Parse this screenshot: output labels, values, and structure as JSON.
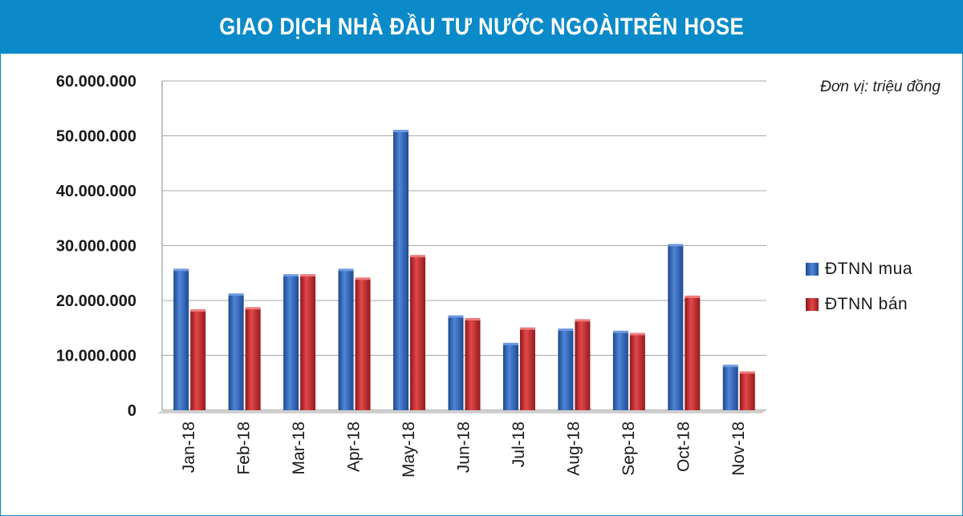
{
  "header": {
    "title": "GIAO DỊCH NHÀ ĐẦU TƯ NƯỚC NGOÀITRÊN HOSE"
  },
  "unit_note": "Đơn vị: triệu đồng",
  "colors": {
    "header_bg": "#0a8ac8",
    "buy": "#2f63b5",
    "sell": "#c8262a"
  },
  "chart_data": {
    "type": "bar",
    "categories": [
      "Jan-18",
      "Feb-18",
      "Mar-18",
      "Apr-18",
      "May-18",
      "Jun-18",
      "Jul-18",
      "Aug-18",
      "Sep-18",
      "Oct-18",
      "Nov-18"
    ],
    "series": [
      {
        "name": "ĐTNN mua",
        "values": [
          25500000,
          21000000,
          24500000,
          25500000,
          50800000,
          17000000,
          12000000,
          14600000,
          14200000,
          30000000,
          8000000
        ]
      },
      {
        "name": "ĐTNN bán",
        "values": [
          18100000,
          18500000,
          24500000,
          23900000,
          28000000,
          16500000,
          14800000,
          16300000,
          13800000,
          20600000,
          6800000
        ]
      }
    ],
    "yticks": [
      "0",
      "10.000.000",
      "20.000.000",
      "30.000.000",
      "40.000.000",
      "50.000.000",
      "60.000.000"
    ],
    "ylim": [
      0,
      60000000
    ],
    "grid": true,
    "legend_position": "right"
  }
}
